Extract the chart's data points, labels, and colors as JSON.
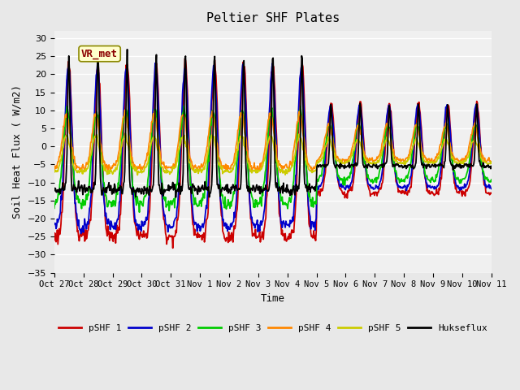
{
  "title": "Peltier SHF Plates",
  "xlabel": "Time",
  "ylabel": "Soil Heat Flux ( W/m2)",
  "ylim": [
    -35,
    32
  ],
  "yticks": [
    -35,
    -30,
    -25,
    -20,
    -15,
    -10,
    -5,
    0,
    5,
    10,
    15,
    20,
    25,
    30
  ],
  "xtick_labels": [
    "Oct 27",
    "Oct 28",
    "Oct 29",
    "Oct 30",
    "Oct 31",
    "Nov 1",
    "Nov 2",
    "Nov 3",
    "Nov 4",
    "Nov 5",
    "Nov 6",
    "Nov 7",
    "Nov 8",
    "Nov 9",
    "Nov 10",
    "Nov 11"
  ],
  "series_colors": [
    "#cc0000",
    "#0000cc",
    "#00cc00",
    "#ff8800",
    "#cccc00",
    "#000000"
  ],
  "series_names": [
    "pSHF 1",
    "pSHF 2",
    "pSHF 3",
    "pSHF 4",
    "pSHF 5",
    "Hukseflux"
  ],
  "annotation_text": "VR_met",
  "n_days": 15,
  "pts_per_day": 48
}
